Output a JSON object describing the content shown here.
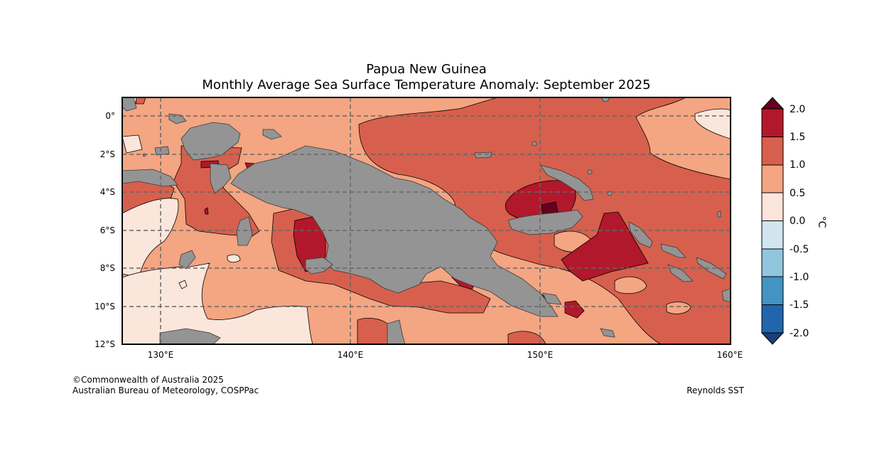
{
  "title": "Papua New Guinea",
  "subtitle": "Monthly Average Sea Surface Temperature Anomaly: September 2025",
  "copyright": "©Commonwealth of Australia 2025",
  "attribution": "Australian Bureau of Meteorology, COSPPac",
  "source": "Reynolds SST",
  "colors": {
    "land": "#949494",
    "cb": [
      "#1a3f7a",
      "#2166ac",
      "#4393c3",
      "#92c5de",
      "#d1e5f0",
      "#fbe6dc",
      "#f4a582",
      "#d6604d",
      "#b2182b",
      "#67001f"
    ]
  },
  "map": {
    "lon_range": [
      128,
      160
    ],
    "lat_range": [
      -12,
      1
    ],
    "lon_ticks": [
      "130°E",
      "140°E",
      "150°E",
      "160°E"
    ],
    "lat_ticks": [
      "0°",
      "2°S",
      "4°S",
      "6°S",
      "8°S",
      "10°S",
      "12°S"
    ]
  },
  "colorbar": {
    "unit": "°C",
    "levels": [
      "2.0",
      "1.5",
      "1.0",
      "0.5",
      "0.0",
      "-0.5",
      "-1.0",
      "-1.5",
      "-2.0"
    ]
  }
}
